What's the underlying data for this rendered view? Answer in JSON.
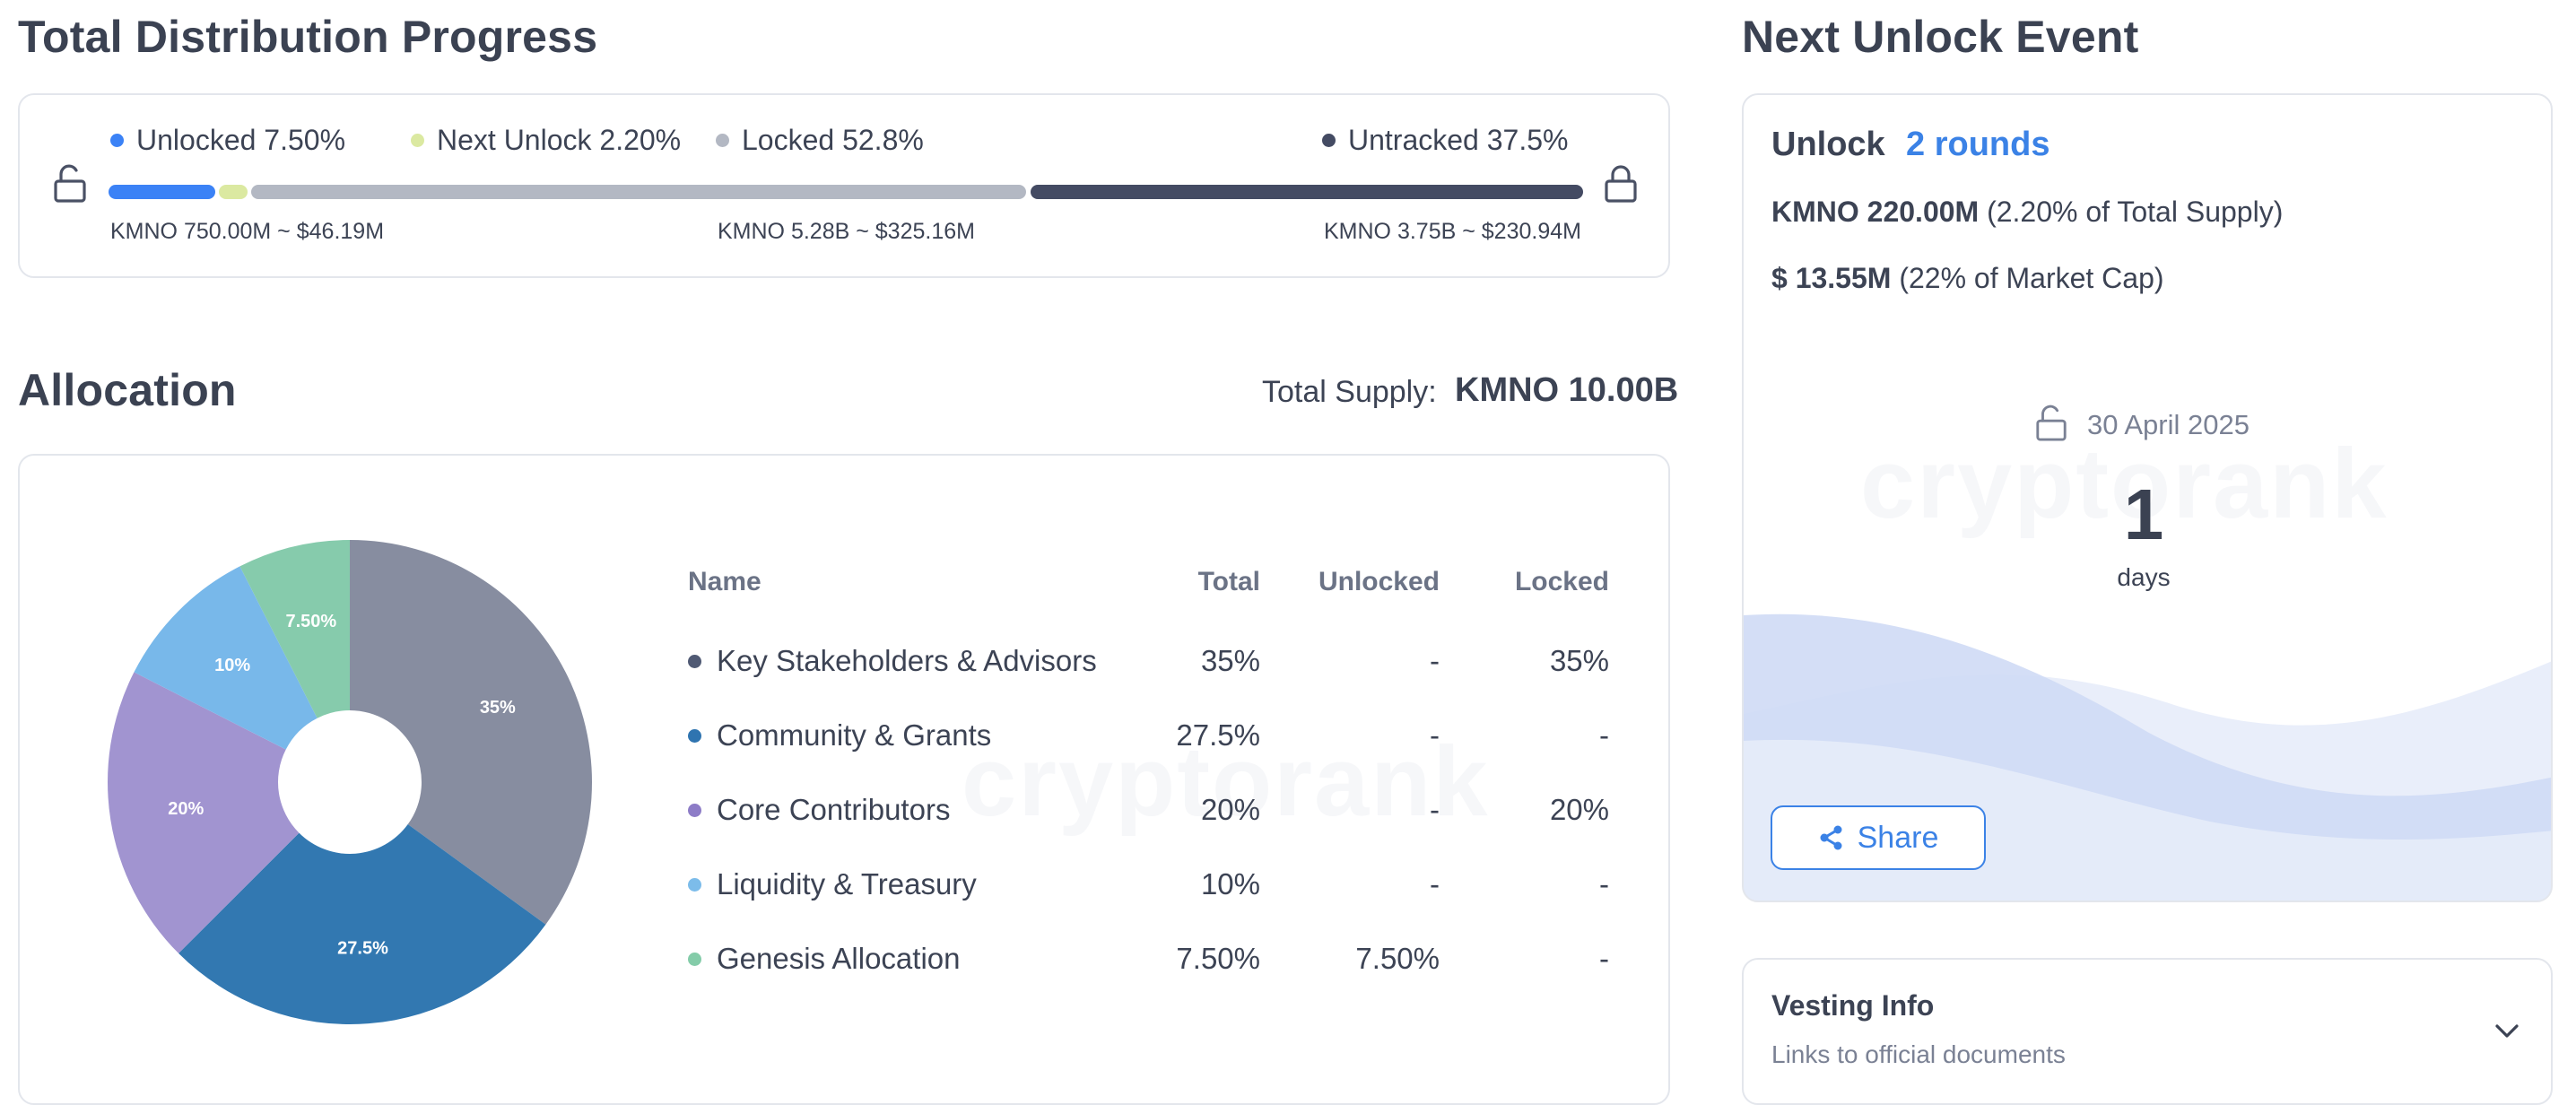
{
  "distribution": {
    "title": "Total Distribution Progress",
    "legend": {
      "unlocked": "Unlocked 7.50%",
      "next_unlock": "Next Unlock 2.20%",
      "locked": "Locked 52.8%",
      "untracked": "Untracked 37.5%"
    },
    "amounts": {
      "unlocked": "KMNO 750.00M ~ $46.19M",
      "locked": "KMNO 5.28B ~ $325.16M",
      "untracked": "KMNO 3.75B ~ $230.94M"
    },
    "progress": {
      "unlocked": 7.5,
      "next_unlock": 2.2,
      "locked": 52.8,
      "untracked": 37.5
    },
    "colors": {
      "unlocked": "#3b82f6",
      "next_unlock": "#dbe9a1",
      "locked": "#b3b8c3",
      "untracked": "#444b63"
    },
    "icons": [
      "lock-open-icon",
      "lock-closed-icon"
    ]
  },
  "allocation": {
    "title": "Allocation",
    "total_supply_label": "Total Supply:",
    "total_supply_value": "KMNO 10.00B",
    "watermark": "cryptorank",
    "table": {
      "headers": {
        "name": "Name",
        "total": "Total",
        "unlocked": "Unlocked",
        "locked": "Locked"
      },
      "rows": [
        {
          "name": "Key Stakeholders & Advisors",
          "total": "35%",
          "unlocked": "-",
          "locked": "35%",
          "color": "#505a74"
        },
        {
          "name": "Community & Grants",
          "total": "27.5%",
          "unlocked": "-",
          "locked": "-",
          "color": "#2f74b0"
        },
        {
          "name": "Core Contributors",
          "total": "20%",
          "unlocked": "-",
          "locked": "20%",
          "color": "#8d7cc7"
        },
        {
          "name": "Liquidity & Treasury",
          "total": "10%",
          "unlocked": "-",
          "locked": "-",
          "color": "#7cbcea"
        },
        {
          "name": "Genesis Allocation",
          "total": "7.50%",
          "unlocked": "7.50%",
          "locked": "-",
          "color": "#84cca9"
        }
      ]
    }
  },
  "chart_data": {
    "type": "pie",
    "categories": [
      "Key Stakeholders & Advisors",
      "Community & Grants",
      "Core Contributors",
      "Liquidity & Treasury",
      "Genesis Allocation"
    ],
    "values": [
      35,
      27.5,
      20,
      10,
      7.5
    ],
    "labels": [
      "35%",
      "27.5%",
      "20%",
      "10%",
      "7.50%"
    ],
    "colors": [
      "#878da0",
      "#3278b1",
      "#a194d0",
      "#78b8ea",
      "#86cbac"
    ]
  },
  "unlock_event": {
    "title": "Next Unlock Event",
    "label": "Unlock",
    "rounds": "2 rounds",
    "amount_bold": "KMNO 220.00M",
    "amount_rest": " (2.20% of Total Supply)",
    "value_bold": "$ 13.55M",
    "value_rest": " (22% of Market Cap)",
    "date": "30 April 2025",
    "countdown_value": "1",
    "countdown_unit": "days",
    "share_label": "Share",
    "watermark": "cryptorank"
  },
  "vesting": {
    "title": "Vesting Info",
    "subtitle": "Links to official documents"
  }
}
